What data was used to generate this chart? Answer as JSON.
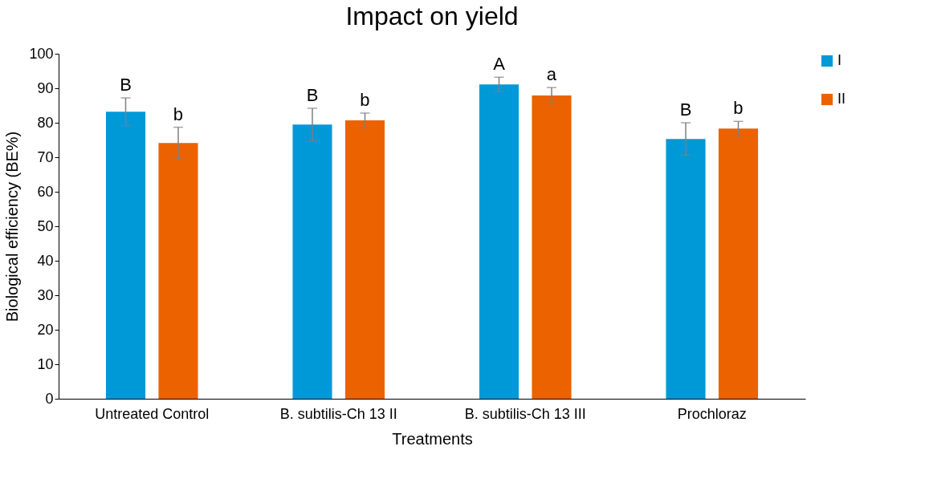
{
  "chart_data": {
    "type": "bar",
    "title": "Impact on yield",
    "xlabel": "Treatments",
    "ylabel": "Biological efficiency (BE%)",
    "categories": [
      "Untreated Control",
      "B. subtilis-Ch 13 II",
      "B. subtilis-Ch 13 III",
      "Prochloraz"
    ],
    "series": [
      {
        "name": "I",
        "color": "#0099d8",
        "values": [
          83.2,
          79.5,
          91.1,
          75.3
        ],
        "errors": [
          4.0,
          4.7,
          2.1,
          4.7
        ],
        "value_labels": [
          "B",
          "B",
          "A",
          "B"
        ]
      },
      {
        "name": "II",
        "color": "#ec6200",
        "values": [
          74.1,
          80.7,
          87.9,
          78.3
        ],
        "errors": [
          4.6,
          2.1,
          2.3,
          2.1
        ],
        "value_labels": [
          "b",
          "b",
          "a",
          "b"
        ]
      }
    ],
    "ylim": [
      0,
      100
    ],
    "yticks": [
      0,
      10,
      20,
      30,
      40,
      50,
      60,
      70,
      80,
      90,
      100
    ],
    "grid": false,
    "legend": "right"
  }
}
